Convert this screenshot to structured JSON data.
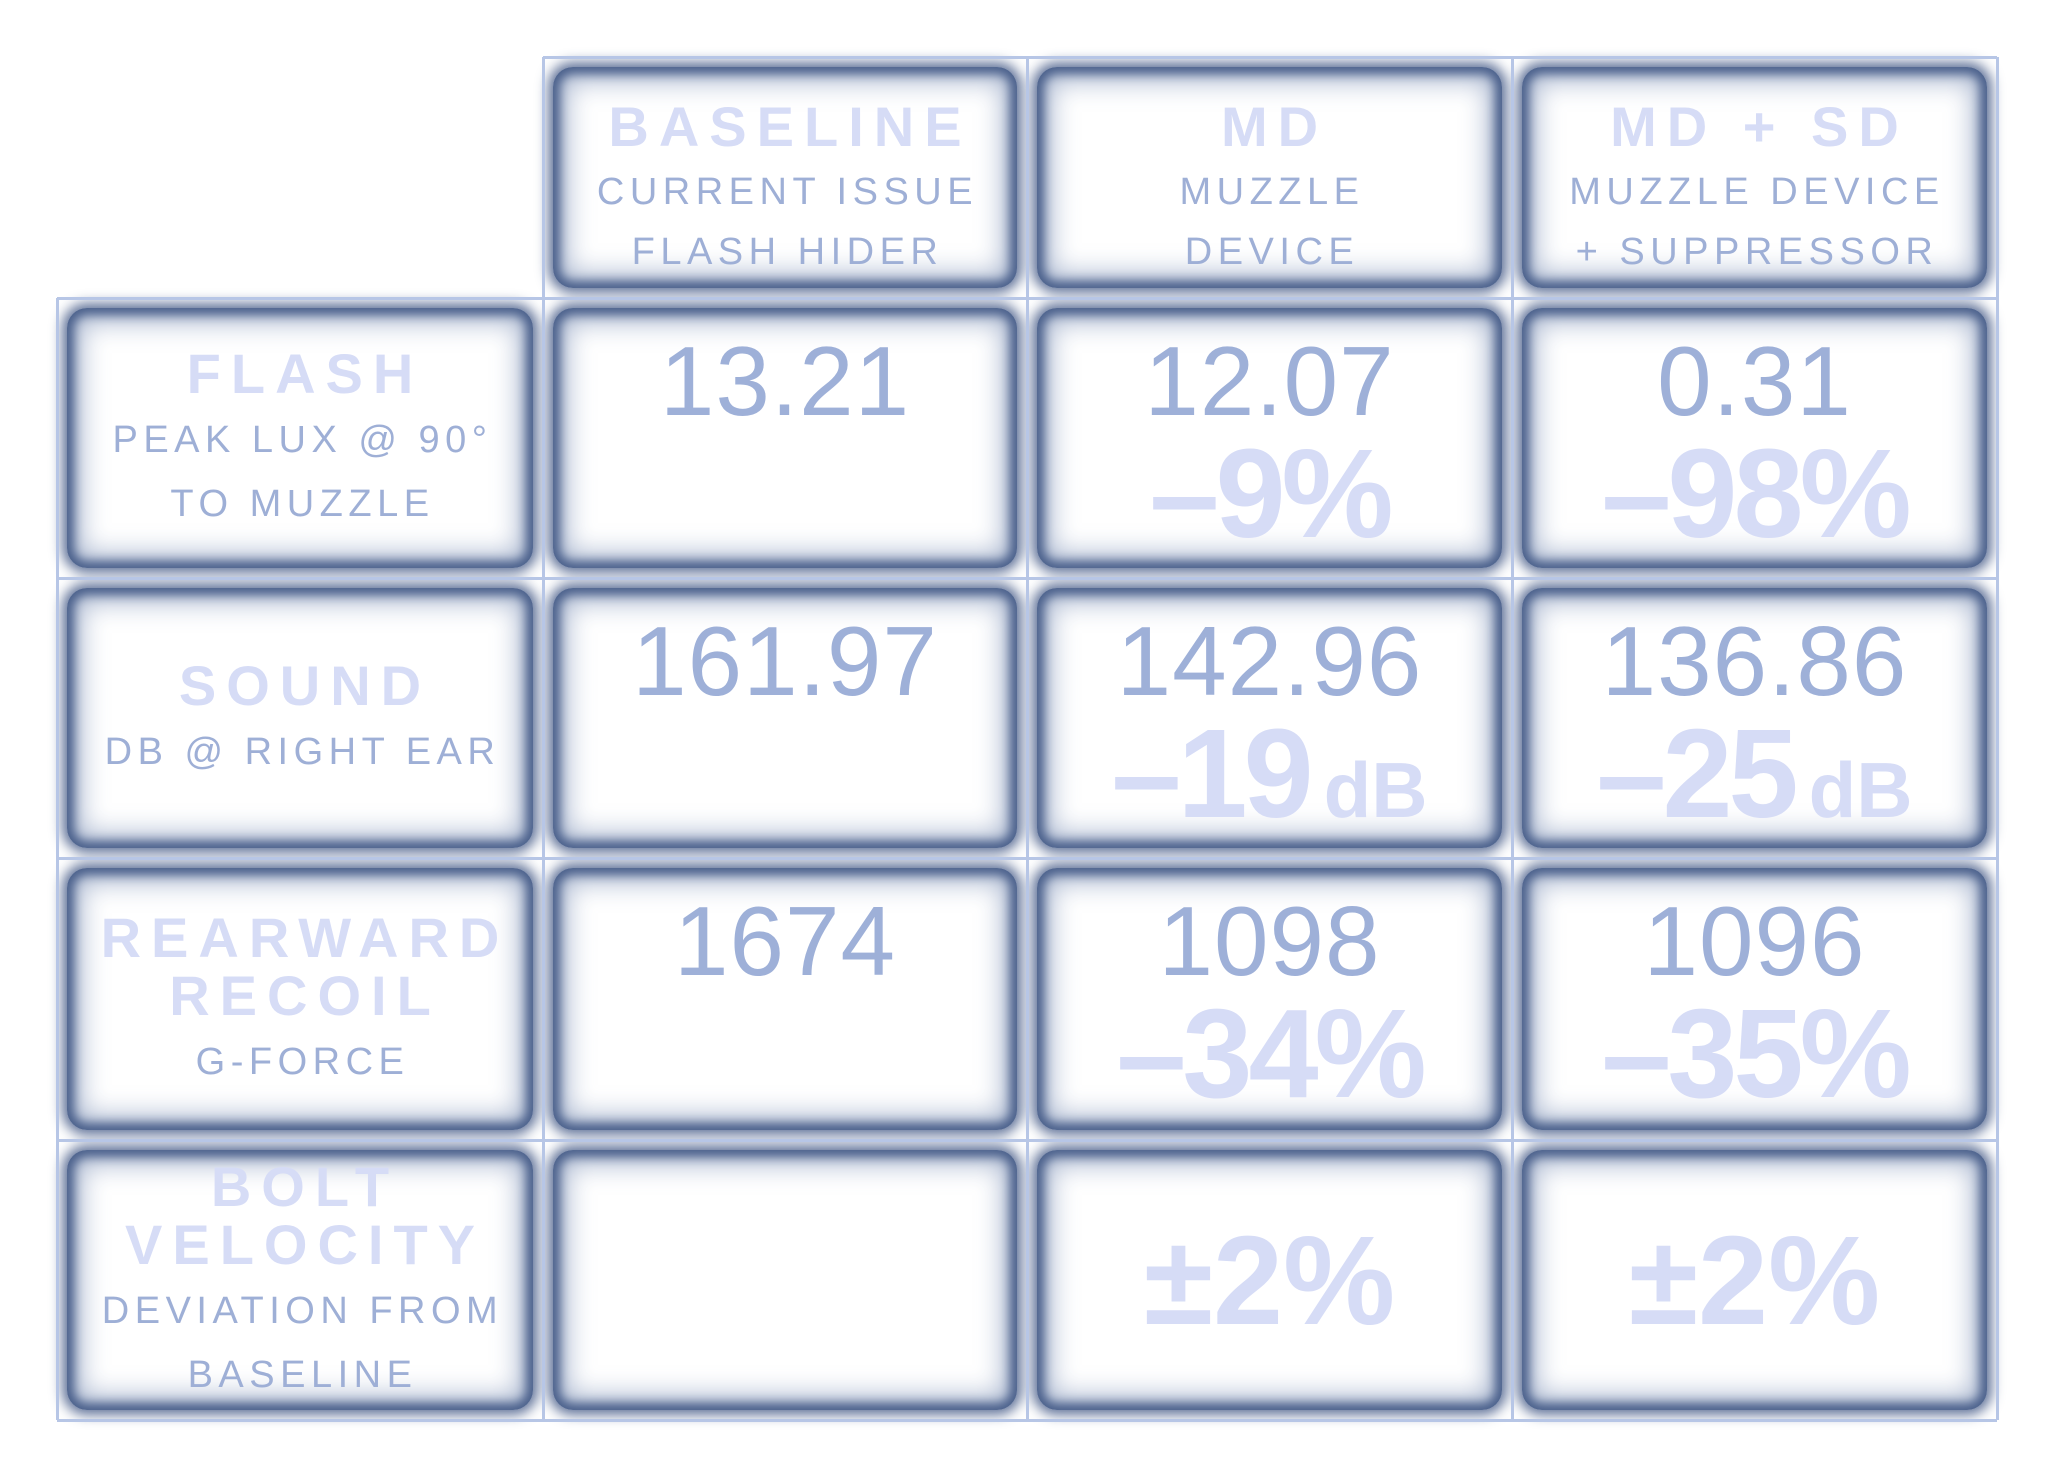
{
  "columns": [
    {
      "title": "BASELINE",
      "subtitle": [
        "CURRENT ISSUE",
        "FLASH HIDER"
      ]
    },
    {
      "title": "MD",
      "subtitle": [
        "MUZZLE",
        "DEVICE"
      ]
    },
    {
      "title": "MD + SD",
      "subtitle": [
        "MUZZLE DEVICE",
        "+ SUPPRESSOR"
      ]
    }
  ],
  "rows": [
    {
      "title": [
        "FLASH"
      ],
      "subtitle": [
        "PEAK LUX @ 90°",
        "TO MUZZLE"
      ],
      "cells": [
        {
          "value": "13.21",
          "delta": "",
          "unit": ""
        },
        {
          "value": "12.07",
          "delta": "–9%",
          "unit": ""
        },
        {
          "value": "0.31",
          "delta": "–98%",
          "unit": ""
        }
      ]
    },
    {
      "title": [
        "SOUND"
      ],
      "subtitle": [
        "DB @ RIGHT EAR"
      ],
      "cells": [
        {
          "value": "161.97",
          "delta": "",
          "unit": ""
        },
        {
          "value": "142.96",
          "delta": "–19",
          "unit": "dB"
        },
        {
          "value": "136.86",
          "delta": "–25",
          "unit": "dB"
        }
      ]
    },
    {
      "title": [
        "REARWARD",
        "RECOIL"
      ],
      "subtitle": [
        "G-FORCE"
      ],
      "cells": [
        {
          "value": "1674",
          "delta": "",
          "unit": ""
        },
        {
          "value": "1098",
          "delta": "–34%",
          "unit": ""
        },
        {
          "value": "1096",
          "delta": "–35%",
          "unit": ""
        }
      ]
    },
    {
      "title": [
        "BOLT",
        "VELOCITY"
      ],
      "subtitle": [
        "DEVIATION FROM",
        "BASELINE"
      ],
      "cells": [
        {
          "value": "",
          "delta": "",
          "unit": ""
        },
        {
          "value": "",
          "delta": "±2%",
          "unit": ""
        },
        {
          "value": "",
          "delta": "±2%",
          "unit": ""
        }
      ]
    }
  ],
  "colors": {
    "title": "#d6dcf6",
    "subtitle": "#9eafd6",
    "value": "#9eb0d8",
    "delta": "#d6dcf6",
    "cell_frame": "#465c88",
    "gridline": "#b7c6e6"
  }
}
